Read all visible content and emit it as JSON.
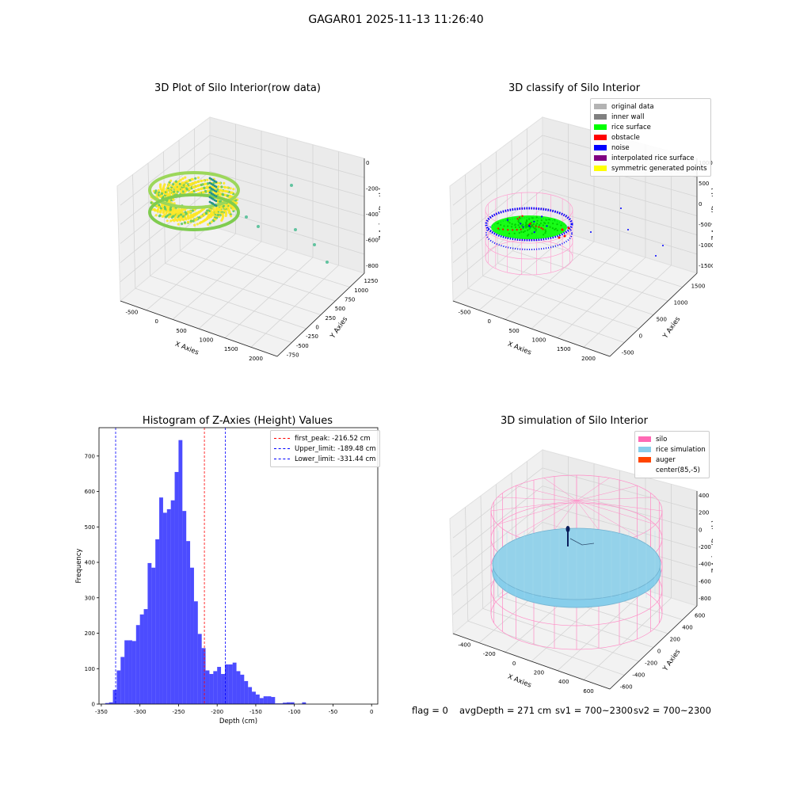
{
  "figure": {
    "suptitle": "GAGAR01 2025-11-13 11:26:40",
    "status": {
      "flag": "flag = 0",
      "avg_depth": "avgDepth = 271 cm",
      "sv1": "sv1 = 700~2300",
      "sv2": "sv2 = 700~2300"
    }
  },
  "panel_raw": {
    "title": "3D Plot of Silo Interior(row data)",
    "xlabel": "X Axies",
    "ylabel": "Y Axies",
    "zlabel": "Z Axies (Depth)",
    "xticks": [
      "-500",
      "0",
      "500",
      "1000",
      "1500",
      "2000"
    ],
    "yticks": [
      "-750",
      "-500",
      "-250",
      "0",
      "250",
      "500",
      "750",
      "1000",
      "1250"
    ],
    "zticks": [
      "0",
      "-200",
      "-400",
      "-600",
      "-800"
    ],
    "colormap": [
      "#3b528b",
      "#21918c",
      "#5ec962",
      "#fde725"
    ]
  },
  "panel_classify": {
    "title": "3D classify of Silo Interior",
    "xlabel": "X Axies",
    "ylabel": "Y Axies",
    "zlabel": "Z Axies (Depth)",
    "xticks": [
      "-500",
      "0",
      "500",
      "1000",
      "1500",
      "2000"
    ],
    "yticks": [
      "-500",
      "0",
      "500",
      "1000",
      "1500"
    ],
    "zticks": [
      "1000",
      "500",
      "0",
      "-500",
      "-1000",
      "-1500"
    ],
    "legend": [
      {
        "label": "original data",
        "color": "#b3b3b3"
      },
      {
        "label": "inner wall",
        "color": "#808080"
      },
      {
        "label": "rice surface",
        "color": "#00ff00"
      },
      {
        "label": "obstacle",
        "color": "#ff0000"
      },
      {
        "label": "noise",
        "color": "#0000ff"
      },
      {
        "label": "interpolated rice surface",
        "color": "#800080"
      },
      {
        "label": "symmetric generated points",
        "color": "#ffff00"
      }
    ]
  },
  "panel_sim": {
    "title": "3D simulation of Silo Interior",
    "xlabel": "X Axies",
    "ylabel": "Y Axies",
    "zlabel": "Z Axies (Depth)",
    "xticks": [
      "-400",
      "-200",
      "0",
      "200",
      "400",
      "600"
    ],
    "yticks": [
      "-600",
      "-400",
      "-200",
      "0",
      "200",
      "400",
      "600"
    ],
    "zticks": [
      "400",
      "200",
      "0",
      "-200",
      "-400",
      "-600",
      "-800"
    ],
    "legend": [
      {
        "label": "silo",
        "color": "#ff69b4"
      },
      {
        "label": "rice simulation",
        "color": "#87ceeb"
      },
      {
        "label": "auger",
        "color": "#ff4500"
      },
      {
        "label": "center(85,-5)",
        "color": "#ffffff"
      }
    ]
  },
  "chart_data": {
    "type": "bar",
    "title": "Histogram of Z-Axies (Height) Values",
    "xlabel": "Depth (cm)",
    "ylabel": "Frequency",
    "xlim": [
      -353,
      8
    ],
    "ylim": [
      0,
      780
    ],
    "bin_width": 5,
    "bar_color": "#0000ff",
    "xticks": [
      -350,
      -300,
      -250,
      -200,
      -150,
      -100,
      -50,
      0
    ],
    "yticks": [
      0,
      100,
      200,
      300,
      400,
      500,
      600,
      700
    ],
    "bins": [
      {
        "x": -350,
        "y": 1
      },
      {
        "x": -345,
        "y": 3
      },
      {
        "x": -340,
        "y": 5
      },
      {
        "x": -335,
        "y": 40
      },
      {
        "x": -330,
        "y": 95
      },
      {
        "x": -325,
        "y": 133
      },
      {
        "x": -320,
        "y": 180
      },
      {
        "x": -315,
        "y": 180
      },
      {
        "x": -310,
        "y": 178
      },
      {
        "x": -305,
        "y": 223
      },
      {
        "x": -300,
        "y": 253
      },
      {
        "x": -295,
        "y": 268
      },
      {
        "x": -290,
        "y": 398
      },
      {
        "x": -285,
        "y": 385
      },
      {
        "x": -280,
        "y": 465
      },
      {
        "x": -275,
        "y": 583
      },
      {
        "x": -270,
        "y": 540
      },
      {
        "x": -265,
        "y": 550
      },
      {
        "x": -260,
        "y": 575
      },
      {
        "x": -255,
        "y": 655
      },
      {
        "x": -250,
        "y": 745
      },
      {
        "x": -245,
        "y": 545
      },
      {
        "x": -240,
        "y": 460
      },
      {
        "x": -235,
        "y": 385
      },
      {
        "x": -230,
        "y": 290
      },
      {
        "x": -225,
        "y": 198
      },
      {
        "x": -220,
        "y": 158
      },
      {
        "x": -215,
        "y": 95
      },
      {
        "x": -210,
        "y": 85
      },
      {
        "x": -205,
        "y": 93
      },
      {
        "x": -200,
        "y": 105
      },
      {
        "x": -195,
        "y": 85
      },
      {
        "x": -190,
        "y": 112
      },
      {
        "x": -185,
        "y": 112
      },
      {
        "x": -180,
        "y": 117
      },
      {
        "x": -175,
        "y": 93
      },
      {
        "x": -170,
        "y": 83
      },
      {
        "x": -165,
        "y": 65
      },
      {
        "x": -160,
        "y": 48
      },
      {
        "x": -155,
        "y": 35
      },
      {
        "x": -150,
        "y": 27
      },
      {
        "x": -145,
        "y": 17
      },
      {
        "x": -140,
        "y": 22
      },
      {
        "x": -135,
        "y": 22
      },
      {
        "x": -130,
        "y": 20
      },
      {
        "x": -125,
        "y": 2
      },
      {
        "x": -120,
        "y": 2
      },
      {
        "x": -115,
        "y": 4
      },
      {
        "x": -110,
        "y": 5
      },
      {
        "x": -105,
        "y": 5
      },
      {
        "x": -100,
        "y": 0
      },
      {
        "x": -95,
        "y": 1
      },
      {
        "x": -90,
        "y": 5
      }
    ],
    "vlines": [
      {
        "x": -216.52,
        "color": "#ff0000",
        "label": "first_peak: -216.52 cm"
      },
      {
        "x": -189.48,
        "color": "#0000ff",
        "label": "Upper_limit: -189.48 cm"
      },
      {
        "x": -331.44,
        "color": "#0000ff",
        "label": "Lower_limit: -331.44 cm"
      }
    ]
  }
}
